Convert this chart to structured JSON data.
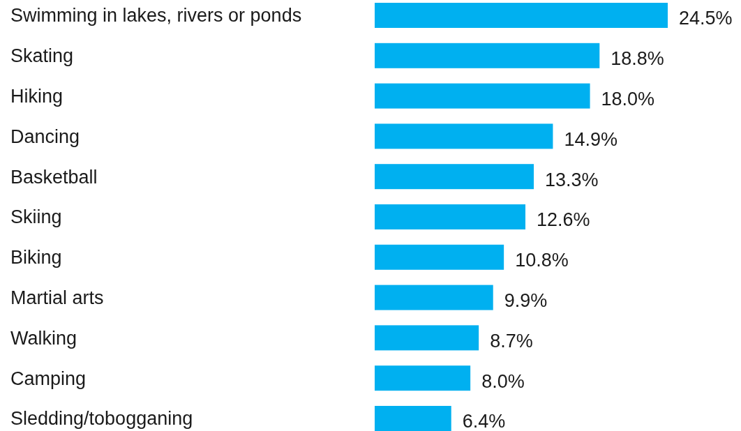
{
  "chart_data": {
    "type": "bar",
    "orientation": "horizontal",
    "categories": [
      "Swimming in lakes, rivers or ponds",
      "Skating",
      "Hiking",
      "Dancing",
      "Basketball",
      "Skiing",
      "Biking",
      "Martial arts",
      "Walking",
      "Camping",
      "Sledding/tobogganing"
    ],
    "values": [
      24.5,
      18.8,
      18.0,
      14.9,
      13.3,
      12.6,
      10.8,
      9.9,
      8.7,
      8.0,
      6.4
    ],
    "value_labels": [
      "24.5%",
      "18.8%",
      "18.0%",
      "14.9%",
      "13.3%",
      "12.6%",
      "10.8%",
      "9.9%",
      "8.7%",
      "8.0%",
      "6.4%"
    ],
    "color": "#00b0f0"
  }
}
